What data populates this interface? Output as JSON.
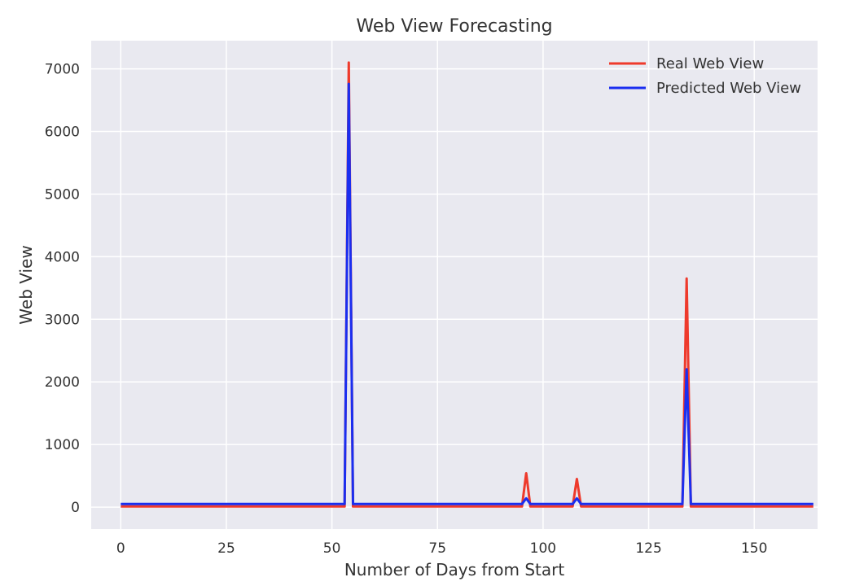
{
  "chart_data": {
    "type": "line",
    "title": "Web View Forecasting",
    "xlabel": "Number of Days from Start",
    "ylabel": "Web View",
    "xlim": [
      -7,
      165
    ],
    "ylim": [
      -350,
      7450
    ],
    "xticks": [
      0,
      25,
      50,
      75,
      100,
      125,
      150
    ],
    "yticks": [
      0,
      1000,
      2000,
      3000,
      4000,
      5000,
      6000,
      7000
    ],
    "grid": true,
    "legend_position": "top-right",
    "background_color": "#e9e9f0",
    "grid_color": "#ffffff",
    "series": [
      {
        "name": "Real Web View",
        "color": "#ee3a2c",
        "points": [
          [
            0,
            10
          ],
          [
            53,
            10
          ],
          [
            54,
            7100
          ],
          [
            55,
            10
          ],
          [
            95,
            10
          ],
          [
            96,
            540
          ],
          [
            97,
            10
          ],
          [
            107,
            10
          ],
          [
            108,
            450
          ],
          [
            109,
            10
          ],
          [
            133,
            10
          ],
          [
            134,
            3650
          ],
          [
            135,
            10
          ],
          [
            164,
            10
          ]
        ]
      },
      {
        "name": "Predicted Web View",
        "color": "#1a2ef0",
        "points": [
          [
            0,
            50
          ],
          [
            53,
            50
          ],
          [
            54,
            6760
          ],
          [
            55,
            50
          ],
          [
            95,
            50
          ],
          [
            96,
            140
          ],
          [
            97,
            50
          ],
          [
            107,
            50
          ],
          [
            108,
            140
          ],
          [
            109,
            50
          ],
          [
            133,
            50
          ],
          [
            134,
            2200
          ],
          [
            135,
            50
          ],
          [
            164,
            50
          ]
        ]
      }
    ]
  }
}
